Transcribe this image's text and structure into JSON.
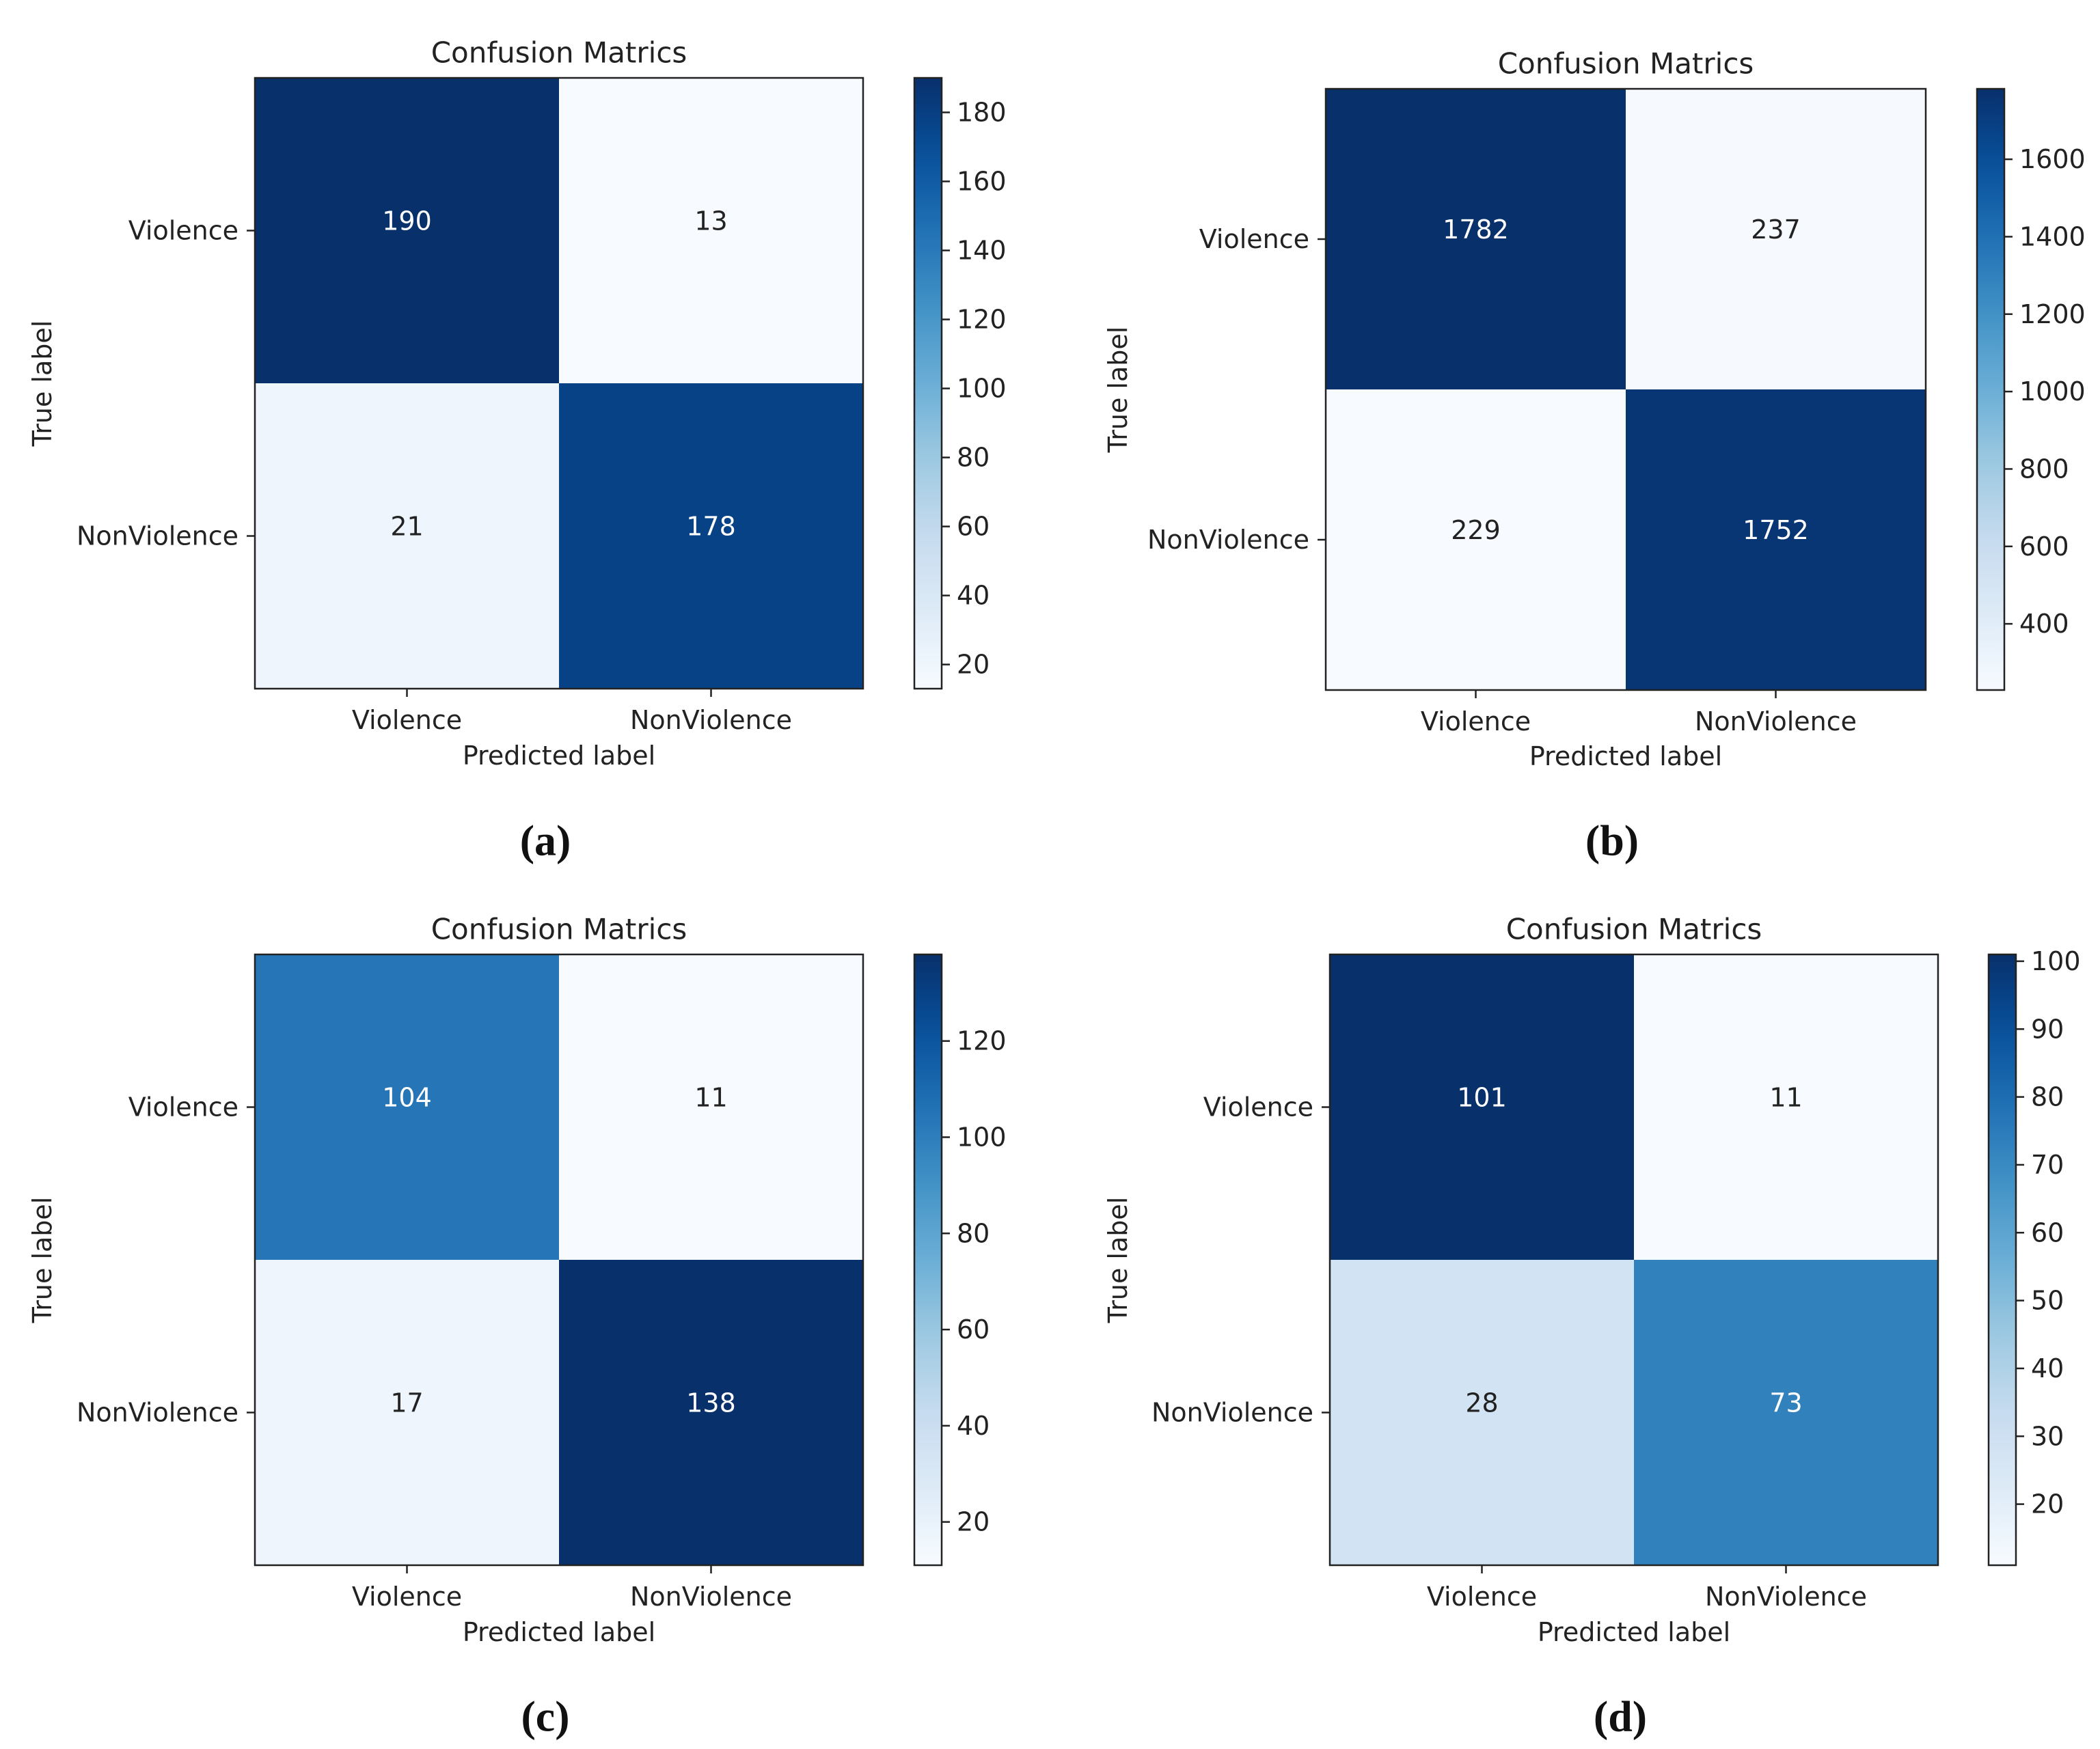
{
  "chart_data": [
    {
      "type": "heatmap",
      "panel_label": "(a)",
      "title": "Confusion Matrics",
      "xlabel": "Predicted label",
      "ylabel": "True label",
      "x_categories": [
        "Violence",
        "NonViolence"
      ],
      "y_categories": [
        "Violence",
        "NonViolence"
      ],
      "values": [
        [
          190,
          13
        ],
        [
          21,
          178
        ]
      ],
      "colormap": "Blues",
      "colorbar": {
        "min": 13,
        "max": 190,
        "ticks": [
          20,
          40,
          60,
          80,
          100,
          120,
          140,
          160,
          180
        ]
      }
    },
    {
      "type": "heatmap",
      "panel_label": "(b)",
      "title": "Confusion Matrics",
      "xlabel": "Predicted label",
      "ylabel": "True label",
      "x_categories": [
        "Violence",
        "NonViolence"
      ],
      "y_categories": [
        "Violence",
        "NonViolence"
      ],
      "values": [
        [
          1782,
          237
        ],
        [
          229,
          1752
        ]
      ],
      "colormap": "Blues",
      "colorbar": {
        "min": 229,
        "max": 1782,
        "ticks": [
          400,
          600,
          800,
          1000,
          1200,
          1400,
          1600
        ]
      }
    },
    {
      "type": "heatmap",
      "panel_label": "(c)",
      "title": "Confusion Matrics",
      "xlabel": "Predicted label",
      "ylabel": "True label",
      "x_categories": [
        "Violence",
        "NonViolence"
      ],
      "y_categories": [
        "Violence",
        "NonViolence"
      ],
      "values": [
        [
          104,
          11
        ],
        [
          17,
          138
        ]
      ],
      "colormap": "Blues",
      "colorbar": {
        "min": 11,
        "max": 138,
        "ticks": [
          20,
          40,
          60,
          80,
          100,
          120
        ]
      }
    },
    {
      "type": "heatmap",
      "panel_label": "(d)",
      "title": "Confusion Matrics",
      "xlabel": "Predicted label",
      "ylabel": "True label",
      "x_categories": [
        "Violence",
        "NonViolence"
      ],
      "y_categories": [
        "Violence",
        "NonViolence"
      ],
      "values": [
        [
          101,
          11
        ],
        [
          28,
          73
        ]
      ],
      "colormap": "Blues",
      "colorbar": {
        "min": 11,
        "max": 101,
        "ticks": [
          20,
          30,
          40,
          50,
          60,
          70,
          80,
          90,
          100
        ]
      }
    }
  ]
}
